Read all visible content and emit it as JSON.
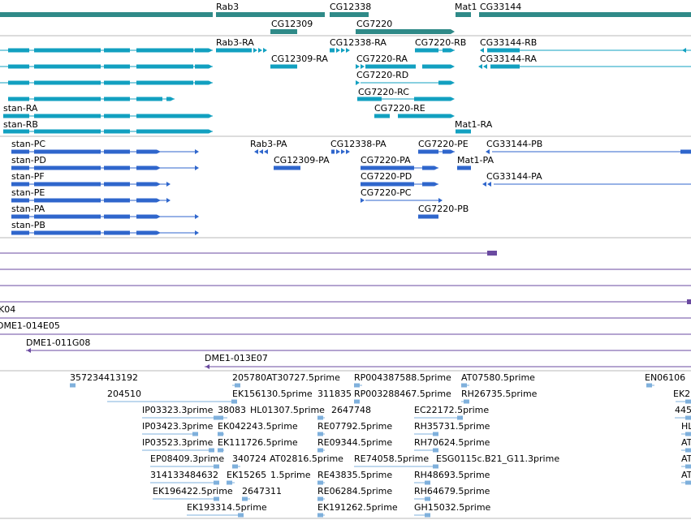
{
  "colors": {
    "gene": "#2f8a88",
    "transcript": "#12a0c0",
    "protein": "#2f66cc",
    "clone": "#6a4aa0",
    "est": "#7fb0dc",
    "divider": "#b8b8b8"
  },
  "tracks": {
    "genes": [
      "Rab3",
      "CG12338",
      "Mat1",
      "CG33144",
      "CG12309",
      "CG7220"
    ],
    "transcripts": [
      "Rab3-RA",
      "CG12338-RA",
      "CG7220-RB",
      "CG33144-RB",
      "CG12309-RA",
      "CG7220-RA",
      "CG33144-RA",
      "CG7220-RD",
      "CG7220-RC",
      "stan-RA",
      "CG7220-RE",
      "stan-RB",
      "Mat1-RA"
    ],
    "proteins": [
      "stan-PC",
      "Rab3-PA",
      "CG12338-PA",
      "CG7220-PE",
      "CG33144-PB",
      "stan-PD",
      "CG12309-PA",
      "CG7220-PA",
      "Mat1-PA",
      "stan-PF",
      "CG7220-PD",
      "CG33144-PA",
      "stan-PE",
      "CG7220-PC",
      "stan-PA",
      "CG7220-PB",
      "stan-PB"
    ],
    "clones": [
      "K04",
      "DME1-014E05",
      "DME1-011G08",
      "DME1-013E07"
    ],
    "ests": [
      "357234413192",
      "205780AT30727.5prime",
      "RP004387588.5prime",
      "AT07580.5prime",
      "EN06106",
      "204510",
      "EK156130.5prime",
      "311835",
      "RP003288467.5prime",
      "RH26735.5prime",
      "EK2",
      "IP03323.3prime",
      "38083",
      "HL01307.5prime",
      "2647748",
      "EC22172.5prime",
      "445",
      "IP03423.3prime",
      "EK042243.5prime",
      "RE07792.5prime",
      "RH35731.5prime",
      "HL",
      "IP03523.3prime",
      "EK111726.5prime",
      "RE09344.5prime",
      "RH70624.5prime",
      "AT",
      "EP08409.3prime",
      "340724",
      "AT02816.5prime",
      "RE74058.5prime",
      "ESG0115c.B21_G11.3prime",
      "AT",
      "314133484632",
      "EK15265",
      "1.5prime",
      "RE43835.5prime",
      "RH48693.5prime",
      "AT",
      "EK196422.5prime",
      "2647311",
      "RE06284.5prime",
      "RH64679.5prime",
      "EK193314.5prime",
      "EK191262.5prime",
      "GH15032.5prime"
    ]
  }
}
